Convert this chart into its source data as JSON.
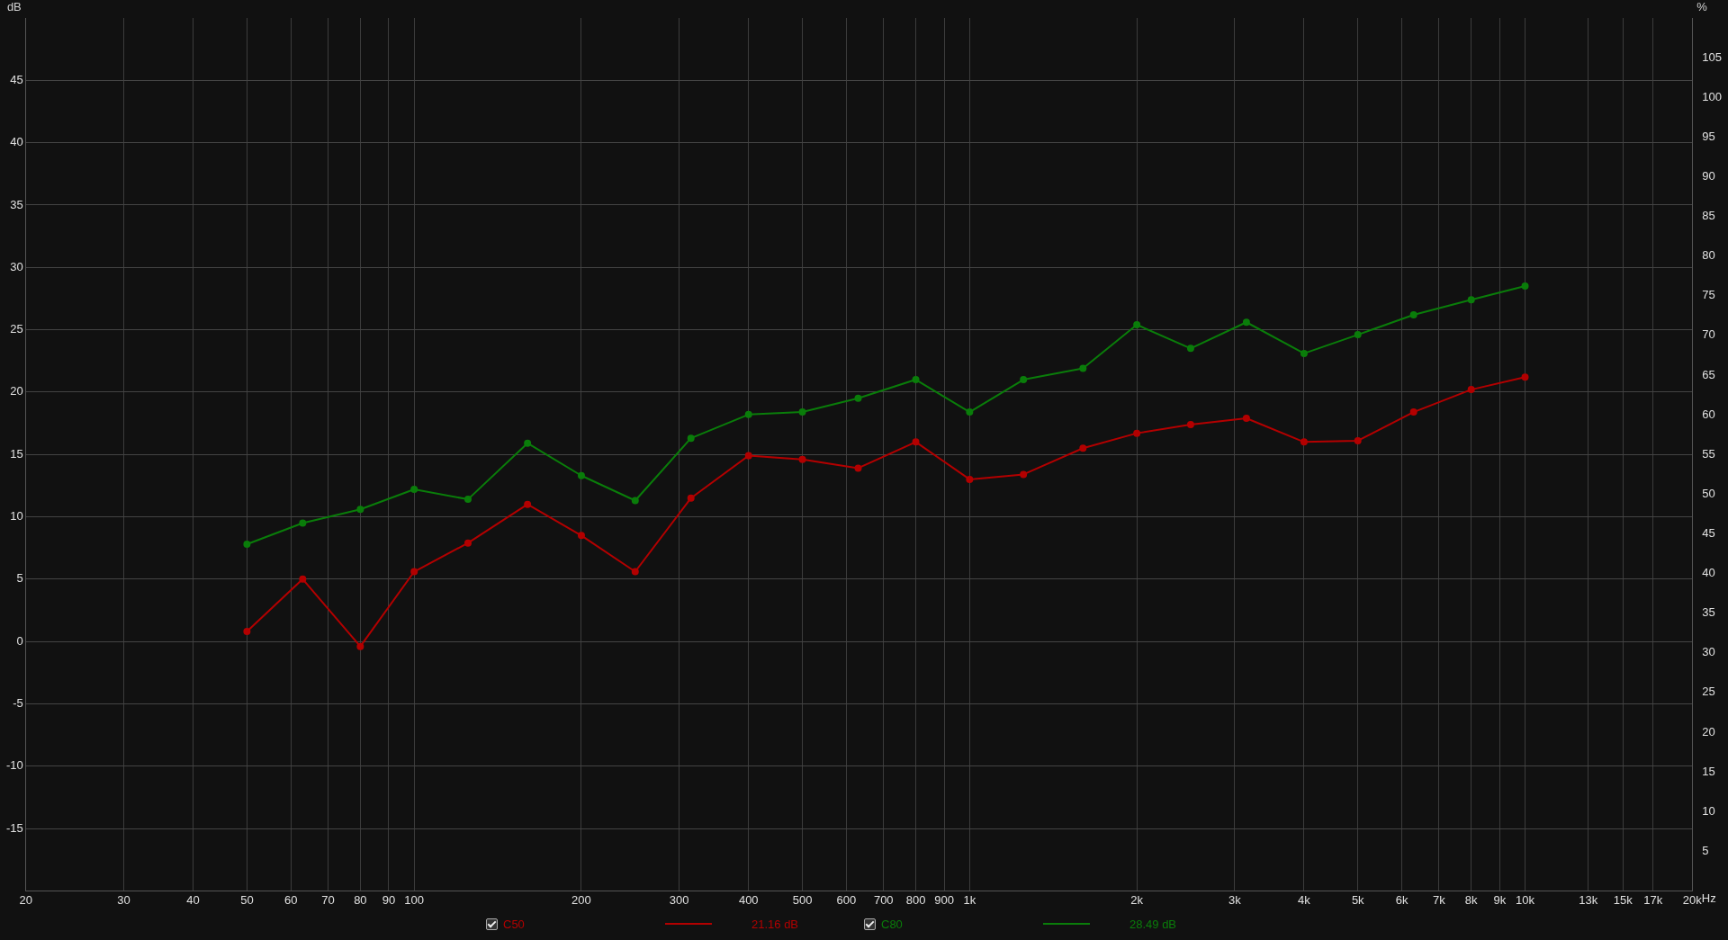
{
  "chart_data": {
    "type": "line",
    "ylabel": "dB",
    "y2label": "%",
    "x": [
      50,
      63,
      80,
      100,
      125,
      160,
      200,
      250,
      315,
      400,
      500,
      630,
      800,
      1000,
      1250,
      1600,
      2000,
      2500,
      3150,
      4000,
      5000,
      6300,
      8000,
      10000
    ],
    "series": [
      {
        "name": "C50",
        "color": "#b30000",
        "values": [
          0.8,
          5.0,
          -0.4,
          5.6,
          7.9,
          11.0,
          8.5,
          5.6,
          11.5,
          14.9,
          14.6,
          13.9,
          16.0,
          13.0,
          13.4,
          15.5,
          16.7,
          17.4,
          17.9,
          16.0,
          16.1,
          18.4,
          20.2,
          21.2
        ]
      },
      {
        "name": "C80",
        "color": "#0a7d0a",
        "values": [
          7.8,
          9.5,
          10.6,
          12.2,
          11.4,
          15.9,
          13.3,
          11.3,
          16.3,
          18.2,
          18.4,
          19.5,
          21.0,
          18.4,
          21.0,
          21.9,
          25.4,
          23.5,
          25.6,
          23.1,
          24.6,
          26.2,
          27.4,
          28.5
        ]
      }
    ],
    "annotations": [
      "21.16 dB",
      "28.49 dB"
    ],
    "log": "x",
    "xlim": [
      20,
      20000
    ],
    "xticks": [
      20,
      30,
      40,
      50,
      60,
      70,
      80,
      90,
      100,
      200,
      300,
      400,
      500,
      600,
      700,
      800,
      900,
      {
        "value": 1000,
        "label": "1k"
      },
      {
        "value": 2000,
        "label": "2k"
      },
      {
        "value": 3000,
        "label": "3k"
      },
      {
        "value": 4000,
        "label": "4k"
      },
      {
        "value": 5000,
        "label": "5k"
      },
      {
        "value": 6000,
        "label": "6k"
      },
      {
        "value": 7000,
        "label": "7k"
      },
      {
        "value": 8000,
        "label": "8k"
      },
      {
        "value": 9000,
        "label": "9k"
      },
      {
        "value": 10000,
        "label": "10k"
      },
      {
        "value": 13000,
        "label": "13k"
      },
      {
        "value": 15000,
        "label": "15k"
      },
      {
        "value": 17000,
        "label": "17k"
      },
      {
        "value": 20000,
        "label": "20k"
      }
    ],
    "xlabel": "Hz",
    "ylim": [
      -20,
      50
    ],
    "yticks": [
      -15,
      -10,
      -5,
      0,
      5,
      10,
      15,
      20,
      25,
      30,
      35,
      40,
      45
    ],
    "y2lim": [
      0,
      110
    ],
    "y2ticks": [
      5,
      10,
      15,
      20,
      25,
      30,
      35,
      40,
      45,
      50,
      55,
      60,
      65,
      70,
      75,
      80,
      85,
      90,
      95,
      100,
      105
    ],
    "grid": true,
    "legend": "bottom",
    "marker": "circle",
    "line_style": "solid"
  }
}
